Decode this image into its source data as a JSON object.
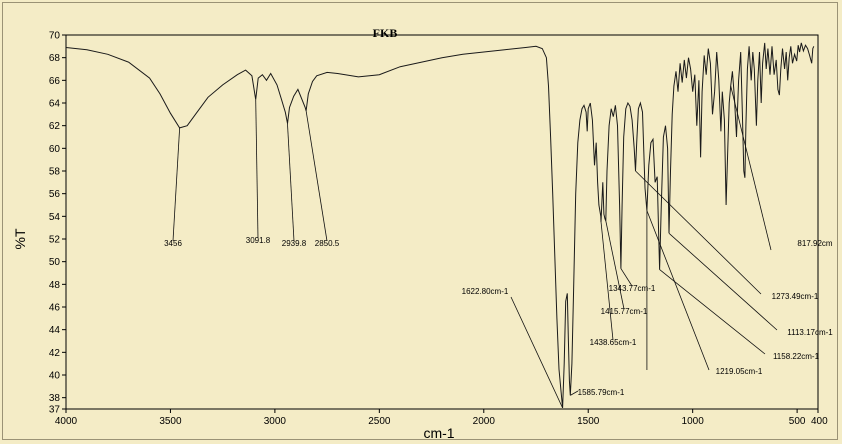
{
  "chart_data": {
    "type": "line",
    "title": "FKB",
    "xlabel": "cm-1",
    "ylabel": "%T",
    "xlim": [
      4000,
      400
    ],
    "ylim": [
      37,
      70
    ],
    "x_ticks": [
      {
        "value": 4000,
        "label": "4000"
      },
      {
        "value": 3500,
        "label": "3500"
      },
      {
        "value": 3000,
        "label": "3000"
      },
      {
        "value": 2500,
        "label": "2500"
      },
      {
        "value": 2000,
        "label": "2000"
      },
      {
        "value": 1500,
        "label": "1500"
      },
      {
        "value": 1000,
        "label": "1000"
      },
      {
        "value": 500,
        "label": "500"
      },
      {
        "value": 400,
        "label": "400"
      }
    ],
    "y_ticks": [
      37,
      38,
      40,
      42,
      44,
      46,
      48,
      50,
      52,
      54,
      56,
      58,
      60,
      62,
      64,
      66,
      68,
      70
    ],
    "grid": false,
    "series": [
      {
        "color": "#1a1a1a",
        "points": [
          [
            4000,
            68.9
          ],
          [
            3900,
            68.7
          ],
          [
            3800,
            68.3
          ],
          [
            3700,
            67.6
          ],
          [
            3600,
            66.2
          ],
          [
            3550,
            64.8
          ],
          [
            3500,
            63.1
          ],
          [
            3456,
            61.8
          ],
          [
            3420,
            62.0
          ],
          [
            3380,
            63.0
          ],
          [
            3320,
            64.5
          ],
          [
            3250,
            65.6
          ],
          [
            3180,
            66.5
          ],
          [
            3140,
            66.9
          ],
          [
            3110,
            66.4
          ],
          [
            3091.8,
            64.3
          ],
          [
            3080,
            66.2
          ],
          [
            3060,
            66.5
          ],
          [
            3040,
            66.0
          ],
          [
            3020,
            66.6
          ],
          [
            2990,
            65.6
          ],
          [
            2970,
            64.4
          ],
          [
            2950,
            63.2
          ],
          [
            2939.8,
            62.2
          ],
          [
            2930,
            63.6
          ],
          [
            2910,
            64.6
          ],
          [
            2890,
            65.2
          ],
          [
            2870,
            64.3
          ],
          [
            2855,
            63.6
          ],
          [
            2850.5,
            63.3
          ],
          [
            2840,
            64.8
          ],
          [
            2820,
            65.9
          ],
          [
            2800,
            66.4
          ],
          [
            2750,
            66.7
          ],
          [
            2700,
            66.6
          ],
          [
            2600,
            66.3
          ],
          [
            2500,
            66.5
          ],
          [
            2400,
            67.2
          ],
          [
            2300,
            67.6
          ],
          [
            2200,
            68.0
          ],
          [
            2100,
            68.3
          ],
          [
            2000,
            68.5
          ],
          [
            1900,
            68.7
          ],
          [
            1800,
            68.9
          ],
          [
            1750,
            69.0
          ],
          [
            1720,
            68.8
          ],
          [
            1700,
            68.0
          ],
          [
            1690,
            65.5
          ],
          [
            1680,
            61.0
          ],
          [
            1670,
            56.0
          ],
          [
            1660,
            50.5
          ],
          [
            1650,
            45.0
          ],
          [
            1640,
            40.5
          ],
          [
            1630,
            38.5
          ],
          [
            1622.8,
            37.1
          ],
          [
            1615,
            41.0
          ],
          [
            1608,
            46.5
          ],
          [
            1600,
            47.2
          ],
          [
            1595,
            43.0
          ],
          [
            1590,
            39.5
          ],
          [
            1585.8,
            38.2
          ],
          [
            1578,
            41.0
          ],
          [
            1570,
            47.5
          ],
          [
            1560,
            56.0
          ],
          [
            1550,
            60.5
          ],
          [
            1540,
            62.5
          ],
          [
            1530,
            63.5
          ],
          [
            1520,
            63.8
          ],
          [
            1510,
            63.2
          ],
          [
            1505,
            61.5
          ],
          [
            1500,
            63.5
          ],
          [
            1490,
            64.0
          ],
          [
            1480,
            62.5
          ],
          [
            1470,
            58.5
          ],
          [
            1462,
            60.5
          ],
          [
            1455,
            57.0
          ],
          [
            1449,
            55.0
          ],
          [
            1440,
            54.0
          ],
          [
            1438.7,
            53.5
          ],
          [
            1430,
            57.0
          ],
          [
            1425,
            54.2
          ],
          [
            1420,
            53.8
          ],
          [
            1415.8,
            53.6
          ],
          [
            1410,
            58.0
          ],
          [
            1400,
            62.0
          ],
          [
            1390,
            63.5
          ],
          [
            1380,
            62.8
          ],
          [
            1370,
            63.8
          ],
          [
            1360,
            62.0
          ],
          [
            1350,
            55.0
          ],
          [
            1343.8,
            49.4
          ],
          [
            1338,
            55.0
          ],
          [
            1330,
            61.0
          ],
          [
            1320,
            63.5
          ],
          [
            1310,
            64.0
          ],
          [
            1300,
            63.7
          ],
          [
            1290,
            62.5
          ],
          [
            1280,
            60.0
          ],
          [
            1273.5,
            58.0
          ],
          [
            1268,
            60.5
          ],
          [
            1260,
            63.5
          ],
          [
            1250,
            64.0
          ],
          [
            1240,
            63.2
          ],
          [
            1228,
            56.5
          ],
          [
            1219.1,
            54.5
          ],
          [
            1210,
            58.5
          ],
          [
            1200,
            60.5
          ],
          [
            1190,
            60.8
          ],
          [
            1180,
            57.0
          ],
          [
            1170,
            57.5
          ],
          [
            1162,
            52.0
          ],
          [
            1158.2,
            49.3
          ],
          [
            1150,
            55.0
          ],
          [
            1140,
            61.0
          ],
          [
            1130,
            62.0
          ],
          [
            1120,
            60.0
          ],
          [
            1113.2,
            52.5
          ],
          [
            1106,
            58.0
          ],
          [
            1098,
            63.0
          ],
          [
            1090,
            65.5
          ],
          [
            1080,
            66.8
          ],
          [
            1070,
            65.0
          ],
          [
            1060,
            67.5
          ],
          [
            1050,
            65.8
          ],
          [
            1040,
            67.8
          ],
          [
            1030,
            66.2
          ],
          [
            1020,
            68.0
          ],
          [
            1010,
            67.0
          ],
          [
            1000,
            65.0
          ],
          [
            990,
            66.5
          ],
          [
            980,
            62.0
          ],
          [
            970,
            66.0
          ],
          [
            962,
            59.2
          ],
          [
            955,
            65.0
          ],
          [
            945,
            68.2
          ],
          [
            935,
            66.5
          ],
          [
            925,
            68.8
          ],
          [
            915,
            67.5
          ],
          [
            905,
            63.0
          ],
          [
            895,
            65.0
          ],
          [
            885,
            68.5
          ],
          [
            875,
            66.0
          ],
          [
            865,
            61.5
          ],
          [
            858,
            65.0
          ],
          [
            848,
            62.5
          ],
          [
            840,
            55.0
          ],
          [
            832,
            60.0
          ],
          [
            825,
            64.0
          ],
          [
            817.9,
            65.5
          ],
          [
            810,
            66.8
          ],
          [
            800,
            64.5
          ],
          [
            790,
            61.0
          ],
          [
            780,
            66.0
          ],
          [
            770,
            68.5
          ],
          [
            762,
            63.0
          ],
          [
            755,
            58.0
          ],
          [
            750,
            57.4
          ],
          [
            745,
            62.0
          ],
          [
            738,
            67.0
          ],
          [
            730,
            69.0
          ],
          [
            720,
            66.0
          ],
          [
            712,
            68.5
          ],
          [
            705,
            67.0
          ],
          [
            695,
            62.0
          ],
          [
            688,
            66.0
          ],
          [
            680,
            68.5
          ],
          [
            672,
            64.0
          ],
          [
            665,
            67.5
          ],
          [
            655,
            69.3
          ],
          [
            648,
            67.0
          ],
          [
            640,
            68.8
          ],
          [
            630,
            66.5
          ],
          [
            620,
            69.0
          ],
          [
            610,
            66.5
          ],
          [
            600,
            67.8
          ],
          [
            592,
            65.2
          ],
          [
            585,
            64.7
          ],
          [
            578,
            67.0
          ],
          [
            570,
            68.8
          ],
          [
            560,
            67.0
          ],
          [
            552,
            68.5
          ],
          [
            545,
            66.0
          ],
          [
            538,
            68.0
          ],
          [
            530,
            69.0
          ],
          [
            522,
            67.5
          ],
          [
            512,
            68.3
          ],
          [
            502,
            67.7
          ],
          [
            495,
            69.1
          ],
          [
            488,
            68.5
          ],
          [
            480,
            69.3
          ],
          [
            470,
            68.6
          ],
          [
            460,
            69.1
          ],
          [
            450,
            68.8
          ],
          [
            440,
            68.2
          ],
          [
            430,
            67.5
          ],
          [
            425,
            68.8
          ],
          [
            420,
            69.0
          ]
        ]
      }
    ],
    "annotations": [
      {
        "label": "3456",
        "x": 3456,
        "y": 61.8
      },
      {
        "label": "3091.8",
        "x": 3091.8,
        "y": 64.3
      },
      {
        "label": "2939.8",
        "x": 2939.8,
        "y": 62.2
      },
      {
        "label": "2850.5",
        "x": 2850.5,
        "y": 63.3
      },
      {
        "label": "1622.80cm-1",
        "x": 1622.8,
        "y": 37.1
      },
      {
        "label": "1585.79cm-1",
        "x": 1585.79,
        "y": 38.2
      },
      {
        "label": "1438.65cm-1",
        "x": 1438.65,
        "y": 53.5
      },
      {
        "label": "1415.77cm-1",
        "x": 1415.77,
        "y": 53.6
      },
      {
        "label": "1343.77cm-1",
        "x": 1343.77,
        "y": 49.4
      },
      {
        "label": "1273.49cm-1",
        "x": 1273.49,
        "y": 58.0
      },
      {
        "label": "1219.05cm-1",
        "x": 1219.05,
        "y": 54.5
      },
      {
        "label": "1158.22cm-1",
        "x": 1158.22,
        "y": 49.3
      },
      {
        "label": "1113.17cm-1",
        "x": 1113.17,
        "y": 52.5
      },
      {
        "label": "817.92cm",
        "x": 817.92,
        "y": 65.5
      }
    ]
  }
}
